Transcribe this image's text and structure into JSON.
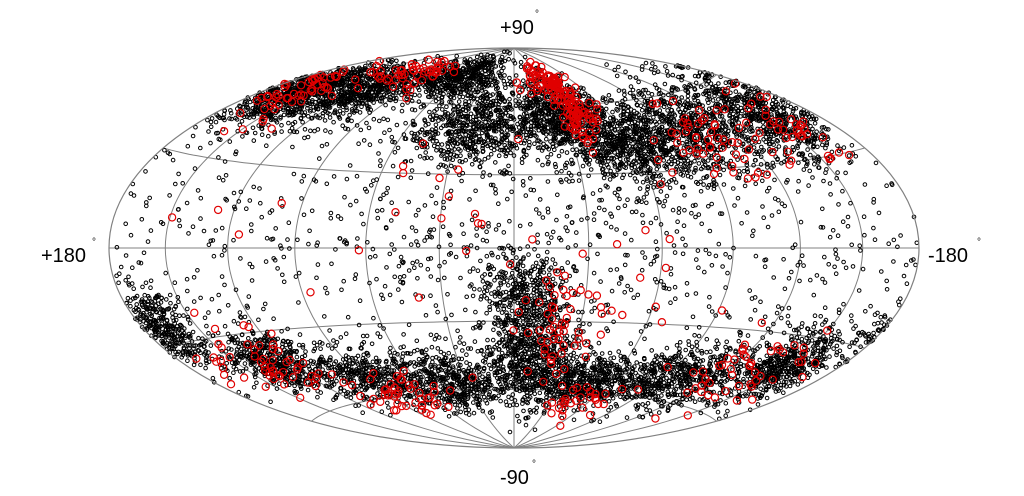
{
  "chart_data": {
    "type": "scatter",
    "projection": "hammer-aitoff",
    "title": "",
    "xlabel": "",
    "ylabel": "",
    "xlim": [
      180,
      -180
    ],
    "ylim": [
      -90,
      90
    ],
    "grid": true,
    "grid_longitudes": [
      150,
      120,
      90,
      60,
      30,
      0,
      -30,
      -60,
      -90,
      -120,
      -150
    ],
    "grid_latitudes": [
      60,
      30,
      0,
      -30,
      -60
    ],
    "annotations": {
      "top": "+90",
      "bottom": "-90",
      "left": "+180",
      "right": "-180",
      "degree_symbol": "°"
    },
    "colors": {
      "background_points": "#000000",
      "highlight_points": "#e00000",
      "grid": "#808080"
    },
    "series": [
      {
        "marker": "small black open circle",
        "clusters": [
          {
            "l": 160,
            "b": 55,
            "spread_l": 25,
            "spread_b": 12,
            "n": 700
          },
          {
            "l": 120,
            "b": 60,
            "spread_l": 30,
            "spread_b": 12,
            "n": 600
          },
          {
            "l": 60,
            "b": 72,
            "spread_l": 40,
            "spread_b": 10,
            "n": 500
          },
          {
            "l": 20,
            "b": 50,
            "spread_l": 30,
            "spread_b": 15,
            "n": 600
          },
          {
            "l": -30,
            "b": 55,
            "spread_l": 25,
            "spread_b": 15,
            "n": 700
          },
          {
            "l": -60,
            "b": 40,
            "spread_l": 25,
            "spread_b": 15,
            "n": 600
          },
          {
            "l": -100,
            "b": 45,
            "spread_l": 30,
            "spread_b": 15,
            "n": 600
          },
          {
            "l": -150,
            "b": 45,
            "spread_l": 25,
            "spread_b": 15,
            "n": 600
          },
          {
            "l": 170,
            "b": -25,
            "spread_l": 15,
            "spread_b": 10,
            "n": 350
          },
          {
            "l": 130,
            "b": -40,
            "spread_l": 20,
            "spread_b": 10,
            "n": 400
          },
          {
            "l": 90,
            "b": -50,
            "spread_l": 30,
            "spread_b": 10,
            "n": 400
          },
          {
            "l": 40,
            "b": -55,
            "spread_l": 30,
            "spread_b": 12,
            "n": 500
          },
          {
            "l": -10,
            "b": -45,
            "spread_l": 20,
            "spread_b": 20,
            "n": 600
          },
          {
            "l": -50,
            "b": -55,
            "spread_l": 30,
            "spread_b": 10,
            "n": 500
          },
          {
            "l": -100,
            "b": -50,
            "spread_l": 30,
            "spread_b": 12,
            "n": 500
          },
          {
            "l": -150,
            "b": -40,
            "spread_l": 20,
            "spread_b": 12,
            "n": 500
          },
          {
            "l": -5,
            "b": -20,
            "spread_l": 15,
            "spread_b": 15,
            "n": 350
          },
          {
            "l": 0,
            "b": 0,
            "spread_l": 180,
            "spread_b": 40,
            "n": 900
          }
        ]
      },
      {
        "marker": "larger red open circle",
        "clusters": [
          {
            "l": -35,
            "b": 70,
            "spread_l": 15,
            "spread_b": 8,
            "n": 80
          },
          {
            "l": -40,
            "b": 55,
            "spread_l": 10,
            "spread_b": 10,
            "n": 70
          },
          {
            "l": 160,
            "b": 55,
            "spread_l": 20,
            "spread_b": 12,
            "n": 60
          },
          {
            "l": 110,
            "b": 70,
            "spread_l": 30,
            "spread_b": 8,
            "n": 50
          },
          {
            "l": -100,
            "b": 40,
            "spread_l": 25,
            "spread_b": 12,
            "n": 50
          },
          {
            "l": -150,
            "b": 40,
            "spread_l": 25,
            "spread_b": 12,
            "n": 40
          },
          {
            "l": -20,
            "b": -30,
            "spread_l": 15,
            "spread_b": 20,
            "n": 50
          },
          {
            "l": 140,
            "b": -40,
            "spread_l": 25,
            "spread_b": 12,
            "n": 50
          },
          {
            "l": 80,
            "b": -60,
            "spread_l": 30,
            "spread_b": 8,
            "n": 50
          },
          {
            "l": -130,
            "b": -45,
            "spread_l": 30,
            "spread_b": 12,
            "n": 50
          },
          {
            "l": -50,
            "b": -65,
            "spread_l": 30,
            "spread_b": 8,
            "n": 30
          },
          {
            "l": 0,
            "b": 10,
            "spread_l": 120,
            "spread_b": 40,
            "n": 40
          }
        ]
      }
    ]
  }
}
